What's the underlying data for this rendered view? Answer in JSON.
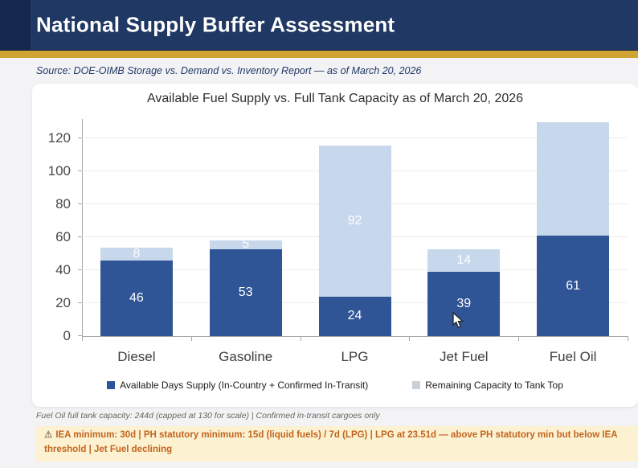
{
  "header": {
    "title": "National Supply Buffer Assessment"
  },
  "source_line": "Source: DOE-OIMB Storage vs. Demand vs. Inventory Report — as of March 20, 2026",
  "chart_data": {
    "type": "bar",
    "stacked": true,
    "title": "Available Fuel Supply vs. Full Tank Capacity as of March 20, 2026",
    "categories": [
      "Diesel",
      "Gasoline",
      "LPG",
      "Jet Fuel",
      "Fuel Oil"
    ],
    "series": [
      {
        "name": "Available Days Supply (In-Country + Confirmed In-Transit)",
        "color": "#2f5596",
        "values": [
          46,
          53,
          24,
          39,
          61
        ],
        "labels": [
          "46",
          "53",
          "24",
          "39",
          "61"
        ]
      },
      {
        "name": "Remaining Capacity to Tank Top",
        "color": "#c8d8ec",
        "legend_color": "#c9d0da",
        "values": [
          8,
          5,
          92,
          14,
          69
        ],
        "labels": [
          "8",
          "5",
          "92",
          "14",
          ""
        ],
        "note": "Fuel Oil remaining segment drawn to cap of 130; actual tank top is 244d"
      }
    ],
    "ylim": [
      0,
      130
    ],
    "yticks": [
      0,
      20,
      40,
      60,
      80,
      100,
      120
    ],
    "grid": "horizontal",
    "legend_position": "bottom"
  },
  "footnote": "Fuel Oil full tank capacity: 244d (capped at 130 for scale)   |   Confirmed in-transit cargoes only",
  "warning": {
    "icon": "warning-triangle-icon",
    "text": "IEA minimum: 30d   |   PH statutory minimum: 15d (liquid fuels) / 7d (LPG)   |   LPG at 23.51d — above PH statutory min but below IEA threshold   |   Jet Fuel declining"
  },
  "colors": {
    "header_navy": "#1f3864",
    "header_accent": "#16274e",
    "gold_divider": "#d0a433",
    "available_bar": "#2f5596",
    "remaining_bar": "#c8d8ec",
    "warning_bg": "#fcf2d2",
    "warning_text": "#c2641f"
  }
}
